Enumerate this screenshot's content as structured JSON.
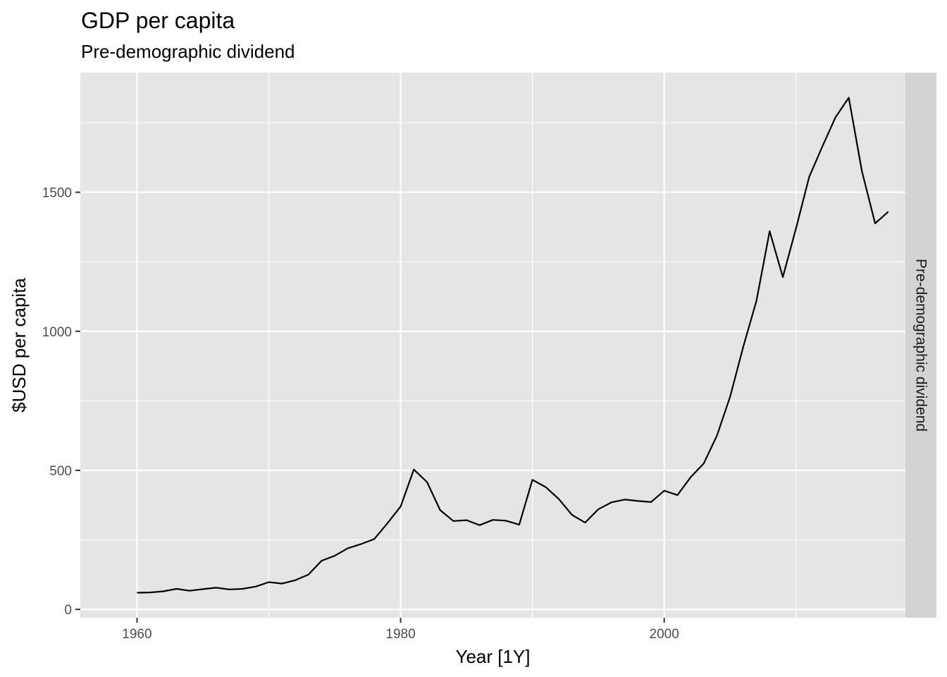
{
  "chart_data": {
    "type": "line",
    "title": "GDP per capita",
    "subtitle": "Pre-demographic dividend",
    "xlabel": "Year [1Y]",
    "ylabel": "$USD per capita",
    "facet_label": "Pre-demographic dividend",
    "xlim": [
      1955.7,
      2018.3
    ],
    "ylim": [
      -30,
      1930
    ],
    "x_ticks": [
      1960,
      1980,
      2000
    ],
    "x_tick_labels": [
      "1960",
      "1980",
      "2000"
    ],
    "x_minor_ticks": [
      1970,
      1990,
      2010
    ],
    "y_ticks": [
      0,
      500,
      1000,
      1500
    ],
    "y_tick_labels": [
      "0",
      "500",
      "1000",
      "1500"
    ],
    "y_minor_ticks": [
      250,
      750,
      1250,
      1750
    ],
    "grid": true,
    "line_color": "#000000",
    "panel_color": "#e5e5e5",
    "strip_color": "#d3d3d3",
    "series": [
      {
        "x": [
          1960,
          1961,
          1962,
          1963,
          1964,
          1965,
          1966,
          1967,
          1968,
          1969,
          1970,
          1971,
          1972,
          1973,
          1974,
          1975,
          1976,
          1977,
          1978,
          1979,
          1980,
          1981,
          1982,
          1983,
          1984,
          1985,
          1986,
          1987,
          1988,
          1989,
          1990,
          1991,
          1992,
          1993,
          1994,
          1995,
          1996,
          1997,
          1998,
          1999,
          2000,
          2001,
          2002,
          2003,
          2004,
          2005,
          2006,
          2007,
          2008,
          2009,
          2010,
          2011,
          2012,
          2013,
          2014,
          2015,
          2016,
          2017
        ],
        "values": [
          60,
          61,
          65,
          74,
          67,
          73,
          78,
          72,
          74,
          82,
          98,
          93,
          105,
          125,
          175,
          193,
          220,
          235,
          253,
          310,
          370,
          503,
          458,
          357,
          318,
          321,
          303,
          322,
          319,
          305,
          466,
          440,
          397,
          340,
          312,
          360,
          385,
          395,
          390,
          386,
          427,
          411,
          475,
          525,
          625,
          765,
          945,
          1110,
          1360,
          1195,
          1370,
          1555,
          1665,
          1770,
          1840,
          1575,
          1388,
          1430
        ]
      }
    ]
  }
}
